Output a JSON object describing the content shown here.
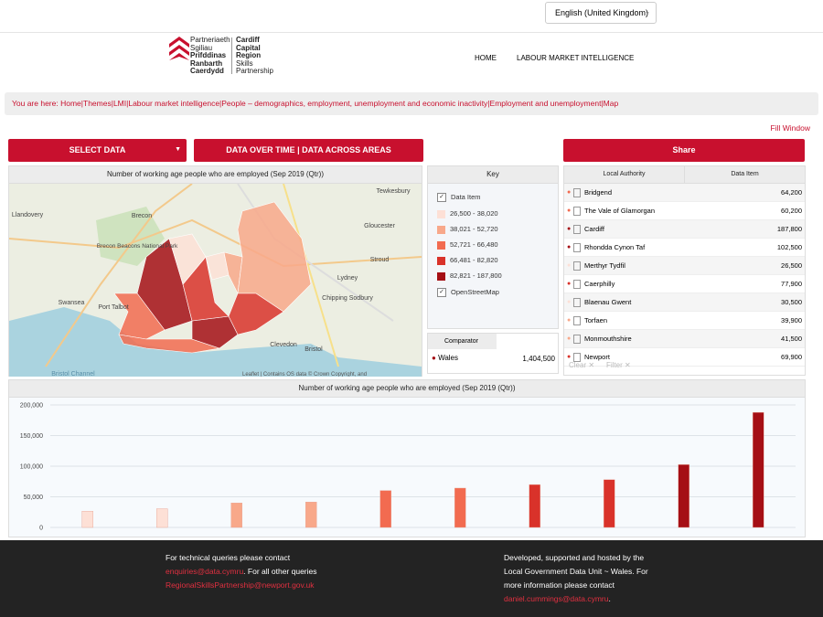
{
  "language": "English (United Kingdom)",
  "logo": {
    "welsh": [
      "Partneriaeth",
      "Sgiliau",
      "Prifddinas",
      "Ranbarth",
      "Caerdydd"
    ],
    "english": [
      "Cardiff",
      "Capital",
      "Region",
      "Skills",
      "Partnership"
    ]
  },
  "nav": [
    "HOME",
    "LABOUR MARKET INTELLIGENCE"
  ],
  "breadcrumb": {
    "prefix": "You are here:",
    "separator": "|",
    "items": [
      "Home",
      "Themes",
      "LMI",
      "Labour market intelligence",
      "People – demographics, employment, unemployment and economic inactivity",
      "Employment and unemployment",
      "Map"
    ]
  },
  "fill_window": "Fill Window",
  "buttons": {
    "select_data": "SELECT DATA",
    "data_over_time": "DATA OVER TIME | DATA ACROSS AREAS",
    "share": "Share"
  },
  "map": {
    "title": "Number of working age people who are employed (Sep  2019 (Qtr))",
    "places": [
      "Llandovery",
      "Brecon",
      "Brecon Beacons National Park",
      "Swansea",
      "Port Talbot",
      "Bristol Channel",
      "Gloucester",
      "Tewkesbury",
      "Stroud",
      "Lydney",
      "Chipping Sodbury",
      "Bristol",
      "Clevedon"
    ],
    "attribution": "Leaflet | Contains OS data © Crown Copyright, and"
  },
  "key": {
    "title": "Key",
    "data_item": "Data Item",
    "basemap": "OpenStreetMap",
    "classes": [
      {
        "label": "26,500 - 38,020",
        "color": "#fde0d6"
      },
      {
        "label": "38,021 - 52,720",
        "color": "#f8a88a"
      },
      {
        "label": "52,721 - 66,480",
        "color": "#f26b50"
      },
      {
        "label": "66,481 - 82,820",
        "color": "#d9322a"
      },
      {
        "label": "82,821 - 187,800",
        "color": "#a50f15"
      }
    ]
  },
  "comparator": {
    "title": "Comparator",
    "name": "Wales",
    "value": "1,404,500"
  },
  "table": {
    "columns": [
      "Local Authority",
      "Data Item"
    ],
    "rows": [
      [
        "Bridgend",
        "64,200"
      ],
      [
        "The Vale of Glamorgan",
        "60,200"
      ],
      [
        "Cardiff",
        "187,800"
      ],
      [
        "Rhondda Cynon Taf",
        "102,500"
      ],
      [
        "Merthyr Tydfil",
        "26,500"
      ],
      [
        "Caerphilly",
        "77,900"
      ],
      [
        "Blaenau Gwent",
        "30,500"
      ],
      [
        "Torfaen",
        "39,900"
      ],
      [
        "Monmouthshire",
        "41,500"
      ],
      [
        "Newport",
        "69,900"
      ]
    ],
    "row_colors": [
      "#f26b50",
      "#f26b50",
      "#a50f15",
      "#a50f15",
      "#fde0d6",
      "#d9322a",
      "#fde0d6",
      "#f8a88a",
      "#f8a88a",
      "#d9322a"
    ],
    "clear": "Clear",
    "filter": "Filter"
  },
  "bar_chart": {
    "type": "bar",
    "title": "Number of working age people who are employed (Sep  2019 (Qtr))",
    "values": [
      26500,
      30500,
      39900,
      41500,
      60200,
      64200,
      69900,
      77900,
      102500,
      187800
    ],
    "colors": [
      "#fde0d6",
      "#fde0d6",
      "#f8a88a",
      "#f8a88a",
      "#f26b50",
      "#f26b50",
      "#d9322a",
      "#d9322a",
      "#a50f15",
      "#a50f15"
    ],
    "ylim": [
      0,
      200000
    ],
    "yticks": [
      0,
      {
        "value": 50000,
        "label": "50,000"
      },
      {
        "value": 100000,
        "label": "100,000"
      },
      {
        "value": 150000,
        "label": "150,000"
      },
      {
        "value": 200000,
        "label": "200,000"
      }
    ],
    "grid": true
  },
  "footer": {
    "left": [
      "For technical queries please contact",
      "enquiries@data.cymru",
      ". For all other queries",
      "RegionalSkillsPartnership@newport.gov.uk"
    ],
    "right": [
      "Developed, supported and hosted by the",
      "Local Government Data Unit ~ Wales. For",
      "more information please contact",
      "daniel.cummings@data.cymru",
      "."
    ]
  }
}
